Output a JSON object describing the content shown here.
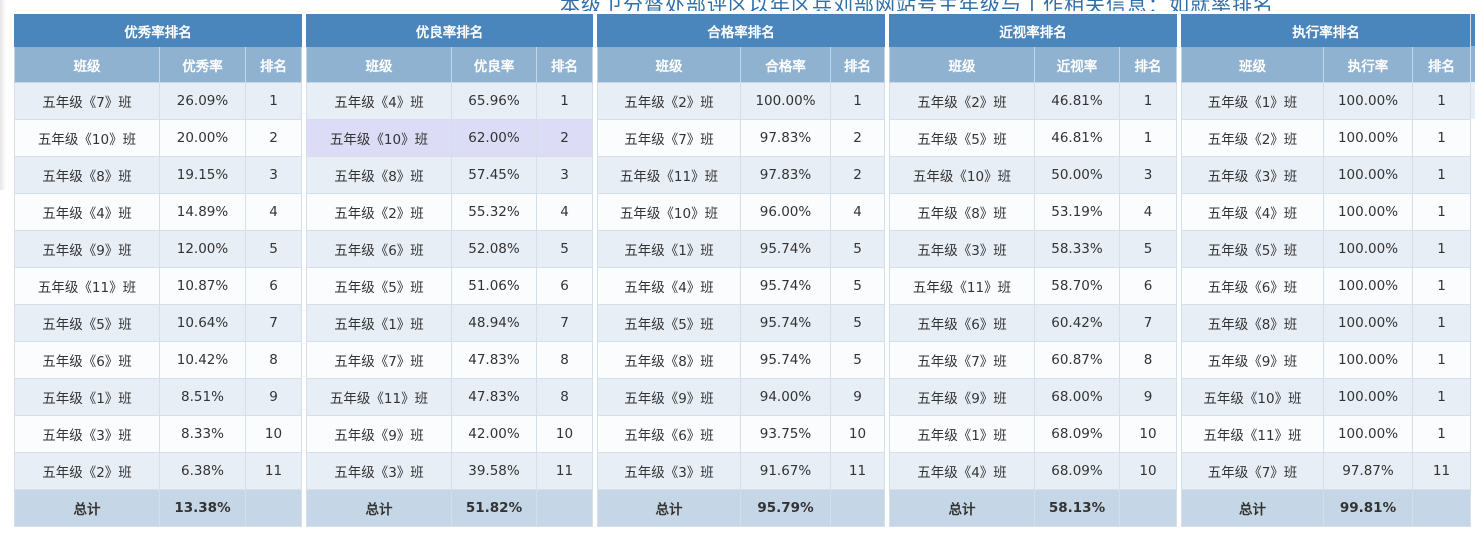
{
  "page_title": "本级卫分督处部评区以年区兵刘部网站号主年级与工作相关信息：如就率排名",
  "tables": [
    {
      "title": "优秀率排名",
      "headers": [
        "班级",
        "优秀率",
        "排名"
      ],
      "rows": [
        {
          "class": "五年级《7》班",
          "rate": "26.09%",
          "rank": "1"
        },
        {
          "class": "五年级《10》班",
          "rate": "20.00%",
          "rank": "2"
        },
        {
          "class": "五年级《8》班",
          "rate": "19.15%",
          "rank": "3"
        },
        {
          "class": "五年级《4》班",
          "rate": "14.89%",
          "rank": "4"
        },
        {
          "class": "五年级《9》班",
          "rate": "12.00%",
          "rank": "5"
        },
        {
          "class": "五年级《11》班",
          "rate": "10.87%",
          "rank": "6"
        },
        {
          "class": "五年级《5》班",
          "rate": "10.64%",
          "rank": "7"
        },
        {
          "class": "五年级《6》班",
          "rate": "10.42%",
          "rank": "8"
        },
        {
          "class": "五年级《1》班",
          "rate": "8.51%",
          "rank": "9"
        },
        {
          "class": "五年级《3》班",
          "rate": "8.33%",
          "rank": "10"
        },
        {
          "class": "五年级《2》班",
          "rate": "6.38%",
          "rank": "11"
        }
      ],
      "total_label": "总计",
      "total_value": "13.38%"
    },
    {
      "title": "优良率排名",
      "headers": [
        "班级",
        "优良率",
        "排名"
      ],
      "rows": [
        {
          "class": "五年级《4》班",
          "rate": "65.96%",
          "rank": "1"
        },
        {
          "class": "五年级《10》班",
          "rate": "62.00%",
          "rank": "2"
        },
        {
          "class": "五年级《8》班",
          "rate": "57.45%",
          "rank": "3"
        },
        {
          "class": "五年级《2》班",
          "rate": "55.32%",
          "rank": "4"
        },
        {
          "class": "五年级《6》班",
          "rate": "52.08%",
          "rank": "5"
        },
        {
          "class": "五年级《5》班",
          "rate": "51.06%",
          "rank": "6"
        },
        {
          "class": "五年级《1》班",
          "rate": "48.94%",
          "rank": "7"
        },
        {
          "class": "五年级《7》班",
          "rate": "47.83%",
          "rank": "8"
        },
        {
          "class": "五年级《11》班",
          "rate": "47.83%",
          "rank": "8"
        },
        {
          "class": "五年级《9》班",
          "rate": "42.00%",
          "rank": "10"
        },
        {
          "class": "五年级《3》班",
          "rate": "39.58%",
          "rank": "11"
        }
      ],
      "total_label": "总计",
      "total_value": "51.82%"
    },
    {
      "title": "合格率排名",
      "headers": [
        "班级",
        "合格率",
        "排名"
      ],
      "rows": [
        {
          "class": "五年级《2》班",
          "rate": "100.00%",
          "rank": "1"
        },
        {
          "class": "五年级《7》班",
          "rate": "97.83%",
          "rank": "2"
        },
        {
          "class": "五年级《11》班",
          "rate": "97.83%",
          "rank": "2"
        },
        {
          "class": "五年级《10》班",
          "rate": "96.00%",
          "rank": "4"
        },
        {
          "class": "五年级《1》班",
          "rate": "95.74%",
          "rank": "5"
        },
        {
          "class": "五年级《4》班",
          "rate": "95.74%",
          "rank": "5"
        },
        {
          "class": "五年级《5》班",
          "rate": "95.74%",
          "rank": "5"
        },
        {
          "class": "五年级《8》班",
          "rate": "95.74%",
          "rank": "5"
        },
        {
          "class": "五年级《9》班",
          "rate": "94.00%",
          "rank": "9"
        },
        {
          "class": "五年级《6》班",
          "rate": "93.75%",
          "rank": "10"
        },
        {
          "class": "五年级《3》班",
          "rate": "91.67%",
          "rank": "11"
        }
      ],
      "total_label": "总计",
      "total_value": "95.79%"
    },
    {
      "title": "近视率排名",
      "headers": [
        "班级",
        "近视率",
        "排名"
      ],
      "rows": [
        {
          "class": "五年级《2》班",
          "rate": "46.81%",
          "rank": "1"
        },
        {
          "class": "五年级《5》班",
          "rate": "46.81%",
          "rank": "1"
        },
        {
          "class": "五年级《10》班",
          "rate": "50.00%",
          "rank": "3"
        },
        {
          "class": "五年级《8》班",
          "rate": "53.19%",
          "rank": "4"
        },
        {
          "class": "五年级《3》班",
          "rate": "58.33%",
          "rank": "5"
        },
        {
          "class": "五年级《11》班",
          "rate": "58.70%",
          "rank": "6"
        },
        {
          "class": "五年级《6》班",
          "rate": "60.42%",
          "rank": "7"
        },
        {
          "class": "五年级《7》班",
          "rate": "60.87%",
          "rank": "8"
        },
        {
          "class": "五年级《9》班",
          "rate": "68.00%",
          "rank": "9"
        },
        {
          "class": "五年级《1》班",
          "rate": "68.09%",
          "rank": "10"
        },
        {
          "class": "五年级《4》班",
          "rate": "68.09%",
          "rank": "10"
        }
      ],
      "total_label": "总计",
      "total_value": "58.13%"
    },
    {
      "title": "执行率排名",
      "headers": [
        "班级",
        "执行率",
        "排名"
      ],
      "rows": [
        {
          "class": "五年级《1》班",
          "rate": "100.00%",
          "rank": "1"
        },
        {
          "class": "五年级《2》班",
          "rate": "100.00%",
          "rank": "1"
        },
        {
          "class": "五年级《3》班",
          "rate": "100.00%",
          "rank": "1"
        },
        {
          "class": "五年级《4》班",
          "rate": "100.00%",
          "rank": "1"
        },
        {
          "class": "五年级《5》班",
          "rate": "100.00%",
          "rank": "1"
        },
        {
          "class": "五年级《6》班",
          "rate": "100.00%",
          "rank": "1"
        },
        {
          "class": "五年级《8》班",
          "rate": "100.00%",
          "rank": "1"
        },
        {
          "class": "五年级《9》班",
          "rate": "100.00%",
          "rank": "1"
        },
        {
          "class": "五年级《10》班",
          "rate": "100.00%",
          "rank": "1"
        },
        {
          "class": "五年级《11》班",
          "rate": "100.00%",
          "rank": "1"
        },
        {
          "class": "五年级《7》班",
          "rate": "97.87%",
          "rank": "11"
        }
      ],
      "total_label": "总计",
      "total_value": "99.81%"
    }
  ],
  "colors": {
    "title_bg": "#4a86bb",
    "header_bg": "#8fb2d0",
    "row_alt": "#e8eef6",
    "row_base": "#fbfcfe",
    "row_highlight": "#dcdcf7",
    "total_bg": "#c5d6e6"
  }
}
